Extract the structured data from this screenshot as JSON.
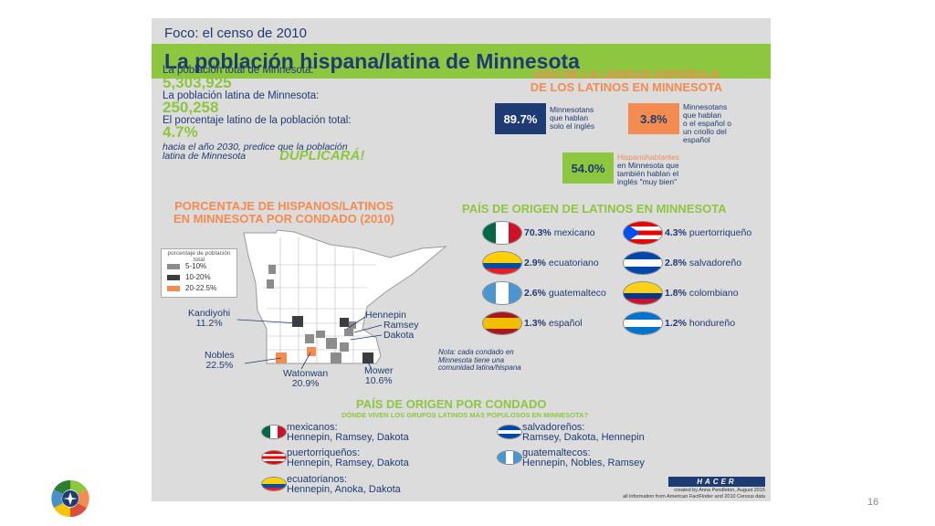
{
  "header": {
    "focus": "Foco: el censo de 2010",
    "title": "La población hispana/latina de Minnesota"
  },
  "stats": {
    "total_label": "La población total de Minnesota:",
    "total_value": "5,303,925",
    "latino_label": "La población latina de Minnesota:",
    "latino_value": "250,258",
    "pct_label": "El porcentaje latino de la población total:",
    "pct_value": "4.7%",
    "proj_line1": "hacia el año 2030, predice que la población",
    "proj_line2": "latina de Minnesota",
    "proj_big": "DUPLICARÁ!"
  },
  "language": {
    "title_line1": "USO DE LA LENGUA ESPAÑOLA",
    "title_line2": "DE LOS LATINOS EN MINNESOTA",
    "box1_value": "89.7%",
    "box1_desc": [
      "Minnesotans",
      "que hablan",
      "solo el inglés"
    ],
    "box2_value": "3.8%",
    "box2_desc": [
      "Minnesotans",
      "que hablan",
      "o el español o",
      "un criollo del",
      "español"
    ],
    "box3_value": "54.0%",
    "box3_title": "Hispanohablantes",
    "box3_desc": [
      "en Minnesota que",
      "también hablan el",
      "inglés \"muy bien\""
    ]
  },
  "map": {
    "title_line1": "PORCENTAJE DE HISPANOS/LATINOS",
    "title_line2": "EN MINNESOTA POR CONDADO (2010)",
    "legend_title": "porcentaje de población total",
    "legend": [
      {
        "label": "5-10%",
        "color": "#8c8c8c"
      },
      {
        "label": "10-20%",
        "color": "#3d3d3d"
      },
      {
        "label": "20-22.5%",
        "color": "#f28c51"
      }
    ],
    "counties": {
      "kandiyohi_name": "Kandiyohi",
      "kandiyohi_pct": "11.2%",
      "nobles_name": "Nobles",
      "nobles_pct": "22.5%",
      "watonwan_name": "Watonwan",
      "watonwan_pct": "20.9%",
      "mower_name": "Mower",
      "mower_pct": "10.6%",
      "hennepin": "Hennepin",
      "ramsey": "Ramsey",
      "dakota": "Dakota"
    },
    "note": [
      "Nota: cada condado en",
      "Minnesota tiene una",
      "comunidad latina/hispana"
    ]
  },
  "origin": {
    "title": "PAÍS DE ORIGEN DE LATINOS EN MINNESOTA",
    "countries": [
      {
        "pct": "70.3%",
        "name": "mexicano",
        "flag": "mexico-flag-icon"
      },
      {
        "pct": "4.3%",
        "name": "puertorriqueño",
        "flag": "puerto-rico-flag-icon"
      },
      {
        "pct": "2.9%",
        "name": "ecuatoriano",
        "flag": "ecuador-flag-icon"
      },
      {
        "pct": "2.8%",
        "name": "salvadoreño",
        "flag": "el-salvador-flag-icon"
      },
      {
        "pct": "2.6%",
        "name": "guatemalteco",
        "flag": "guatemala-flag-icon"
      },
      {
        "pct": "1.8%",
        "name": "colombiano",
        "flag": "colombia-flag-icon"
      },
      {
        "pct": "1.3%",
        "name": "español",
        "flag": "spain-flag-icon"
      },
      {
        "pct": "1.2%",
        "name": "hondureño",
        "flag": "honduras-flag-icon"
      }
    ]
  },
  "by_county": {
    "title": "PAÍS DE ORIGEN POR CONDADO",
    "subtitle": "DÓNDE VIVEN LOS GRUPOS LATINOS MÁS POPULOSOS EN MINNESOTA?",
    "groups": [
      {
        "name": "mexicanos:",
        "counties": "Hennepin, Ramsey, Dakota"
      },
      {
        "name": "puertorriqueños:",
        "counties": "Hennepin, Ramsey, Dakota"
      },
      {
        "name": "ecuatorianos:",
        "counties": "Hennepin, Anoka, Dakota"
      },
      {
        "name": "salvadoreños:",
        "counties": "Ramsey, Dakota, Hennepin"
      },
      {
        "name": "guatemaltecos:",
        "counties": "Hennepin, Nobles, Ramsey"
      }
    ]
  },
  "footer": {
    "brand": "HACER",
    "credit1": "created by Anna Pendleton, August 2015",
    "credit2": "all information from American FactFinder and 2010 Census data"
  },
  "slide_number": "16",
  "colors": {
    "navy": "#1f3b73",
    "green": "#8dc63f",
    "orange": "#f28c51",
    "gray_bg": "#dcdcdc"
  }
}
